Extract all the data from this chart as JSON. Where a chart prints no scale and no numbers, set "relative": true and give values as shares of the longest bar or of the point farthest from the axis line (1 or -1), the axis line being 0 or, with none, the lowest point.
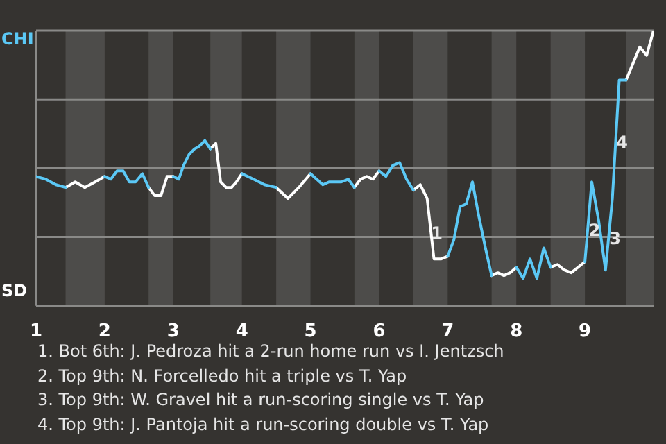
{
  "chart_data": {
    "type": "line",
    "relative": true,
    "x": [
      1,
      1.14,
      1.29,
      1.43,
      1.57,
      1.71,
      1.86,
      2,
      2.09,
      2.18,
      2.27,
      2.36,
      2.45,
      2.55,
      2.64,
      2.73,
      2.82,
      2.91,
      3,
      3.08,
      3.15,
      3.23,
      3.31,
      3.38,
      3.46,
      3.54,
      3.62,
      3.69,
      3.77,
      3.85,
      3.92,
      4,
      4.17,
      4.33,
      4.5,
      4.67,
      4.83,
      5,
      5.09,
      5.18,
      5.27,
      5.36,
      5.45,
      5.55,
      5.64,
      5.73,
      5.82,
      5.91,
      6,
      6.1,
      6.2,
      6.3,
      6.4,
      6.5,
      6.6,
      6.7,
      6.8,
      6.9,
      7,
      7.09,
      7.18,
      7.27,
      7.36,
      7.45,
      7.55,
      7.64,
      7.73,
      7.82,
      7.91,
      8,
      8.1,
      8.2,
      8.3,
      8.4,
      8.5,
      8.6,
      8.7,
      8.8,
      8.9,
      9,
      9.1,
      9.2,
      9.3,
      9.4,
      9.5,
      9.6,
      9.7,
      9.8,
      9.9,
      10
    ],
    "series": [
      {
        "color": "#5bc8f5",
        "values": [
          0.47,
          0.46,
          0.44,
          0.43,
          null,
          null,
          null,
          0.47,
          0.46,
          0.49,
          0.49,
          0.45,
          0.45,
          0.48,
          0.43,
          null,
          null,
          null,
          0.47,
          0.46,
          0.51,
          0.55,
          0.57,
          0.58,
          0.6,
          0.57,
          null,
          null,
          null,
          null,
          null,
          0.48,
          0.46,
          0.44,
          0.43,
          null,
          null,
          0.48,
          0.46,
          0.44,
          0.45,
          0.45,
          0.45,
          0.46,
          0.43,
          null,
          null,
          null,
          0.49,
          0.47,
          0.51,
          0.52,
          0.46,
          0.42,
          null,
          null,
          null,
          null,
          0.18,
          0.24,
          0.36,
          0.37,
          0.45,
          0.33,
          0.21,
          0.11,
          null,
          null,
          null,
          0.14,
          0.1,
          0.17,
          0.1,
          0.21,
          0.14,
          null,
          null,
          null,
          null,
          0.16,
          0.45,
          0.31,
          0.13,
          0.39,
          0.82,
          0.82,
          null,
          null,
          null,
          null
        ]
      },
      {
        "color": "#ffffff",
        "values": [
          null,
          null,
          null,
          0.43,
          0.45,
          0.43,
          0.45,
          0.47,
          null,
          null,
          null,
          null,
          null,
          null,
          0.43,
          0.4,
          0.4,
          0.47,
          0.47,
          null,
          null,
          null,
          null,
          null,
          null,
          0.57,
          0.59,
          0.45,
          0.43,
          0.43,
          0.45,
          0.48,
          null,
          null,
          0.43,
          0.39,
          0.43,
          0.48,
          null,
          null,
          null,
          null,
          null,
          null,
          0.43,
          0.46,
          0.47,
          0.46,
          0.49,
          null,
          null,
          null,
          null,
          0.42,
          0.44,
          0.39,
          0.17,
          0.17,
          0.18,
          null,
          null,
          null,
          null,
          null,
          null,
          0.11,
          0.12,
          0.11,
          0.12,
          0.14,
          null,
          null,
          null,
          null,
          0.14,
          0.15,
          0.13,
          0.12,
          0.14,
          0.16,
          null,
          null,
          null,
          null,
          null,
          0.82,
          0.88,
          0.94,
          0.91,
          1
        ]
      }
    ],
    "xlim": [
      1,
      10
    ],
    "xticks": [
      1,
      2,
      3,
      4,
      5,
      6,
      7,
      8,
      9
    ],
    "bands": [
      {
        "axis": "x",
        "from": 1.43,
        "to": 2,
        "color": "#4d4c4a"
      },
      {
        "axis": "x",
        "from": 2.64,
        "to": 3,
        "color": "#4d4c4a"
      },
      {
        "axis": "x",
        "from": 3.54,
        "to": 4,
        "color": "#4d4c4a"
      },
      {
        "axis": "x",
        "from": 4.5,
        "to": 5,
        "color": "#4d4c4a"
      },
      {
        "axis": "x",
        "from": 5.64,
        "to": 6,
        "color": "#4d4c4a"
      },
      {
        "axis": "x",
        "from": 6.5,
        "to": 7,
        "color": "#4d4c4a"
      },
      {
        "axis": "x",
        "from": 7.64,
        "to": 8,
        "color": "#4d4c4a"
      },
      {
        "axis": "x",
        "from": 8.5,
        "to": 9,
        "color": "#4d4c4a"
      },
      {
        "axis": "x",
        "from": 9.6,
        "to": 10,
        "color": "#4d4c4a"
      }
    ],
    "ref_lines": [
      {
        "axis": "y",
        "value": 1,
        "label": "CHI",
        "color": "#8a8a88"
      },
      {
        "axis": "y",
        "value": 0.75,
        "color": "#8a8a88"
      },
      {
        "axis": "y",
        "value": 0.5,
        "color": "#8a8a88"
      },
      {
        "axis": "y",
        "value": 0.25,
        "color": "#8a8a88"
      },
      {
        "axis": "y",
        "value": 0,
        "label": "SD",
        "color": "#8a8a88"
      }
    ],
    "legend": false,
    "marker": "none",
    "line_style": "solid",
    "annotations": [
      {
        "text": "1",
        "x": 6.84,
        "y": 0.26
      },
      {
        "text": "2",
        "x": 9.14,
        "y": 0.27
      },
      {
        "text": "3",
        "x": 9.44,
        "y": 0.24
      },
      {
        "text": "4",
        "x": 9.54,
        "y": 0.59
      },
      "1. Bot 6th: J. Pedroza hit a 2-run home run vs I. Jentzsch",
      "2. Top 9th: N. Forcelledo hit a triple vs T. Yap",
      "3. Top 9th: W. Gravel hit a run-scoring single vs T. Yap",
      "4. Top 9th: J. Pantoja hit a run-scoring double vs T. Yap"
    ]
  }
}
